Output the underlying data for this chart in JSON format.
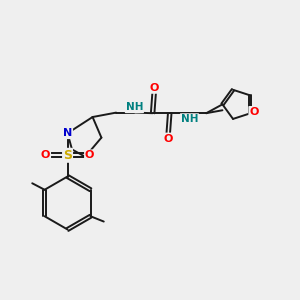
{
  "bg_color": "#efefef",
  "atom_colors": {
    "C": "#000000",
    "N": "#0000cd",
    "O": "#ff0000",
    "S": "#ccaa00",
    "H": "#008080"
  },
  "bond_color": "#1a1a1a",
  "bond_width": 1.4,
  "xlim": [
    0,
    10
  ],
  "ylim": [
    0,
    10
  ]
}
